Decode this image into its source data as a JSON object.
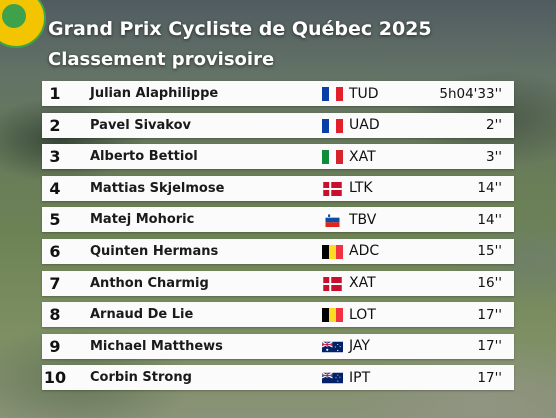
{
  "header": {
    "title": "Grand Prix Cycliste de Québec 2025",
    "subtitle": "Classement provisoire"
  },
  "standings": [
    {
      "position": "1",
      "name": "Julian Alaphilippe",
      "flag": "france-flag-icon",
      "team": "TUD",
      "time": "5h04'33''"
    },
    {
      "position": "2",
      "name": "Pavel Sivakov",
      "flag": "france-flag-icon",
      "team": "UAD",
      "time": "2''"
    },
    {
      "position": "3",
      "name": "Alberto Bettiol",
      "flag": "italy-flag-icon",
      "team": "XAT",
      "time": "3''"
    },
    {
      "position": "4",
      "name": "Mattias Skjelmose",
      "flag": "denmark-flag-icon",
      "team": "LTK",
      "time": "14''"
    },
    {
      "position": "5",
      "name": "Matej Mohoric",
      "flag": "slovenia-flag-icon",
      "team": "TBV",
      "time": "14''"
    },
    {
      "position": "6",
      "name": "Quinten Hermans",
      "flag": "belgium-flag-icon",
      "team": "ADC",
      "time": "15''"
    },
    {
      "position": "7",
      "name": "Anthon Charmig",
      "flag": "denmark-flag-icon",
      "team": "XAT",
      "time": "16''"
    },
    {
      "position": "8",
      "name": "Arnaud De Lie",
      "flag": "belgium-flag-icon",
      "team": "LOT",
      "time": "17''"
    },
    {
      "position": "9",
      "name": "Michael Matthews",
      "flag": "australia-flag-icon",
      "team": "JAY",
      "time": "17''"
    },
    {
      "position": "10",
      "name": "Corbin Strong",
      "flag": "new-zealand-flag-icon",
      "team": "IPT",
      "time": "17''"
    }
  ]
}
